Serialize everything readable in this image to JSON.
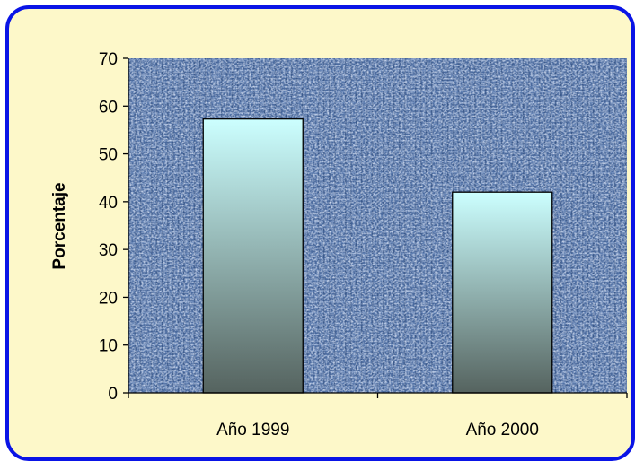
{
  "chart_data": {
    "type": "bar",
    "categories": [
      "Año 1999",
      "Año 2000"
    ],
    "series": [
      {
        "values": [
          57.3,
          42.0
        ]
      }
    ],
    "title": "",
    "xlabel": "",
    "ylabel": "Porcentaje",
    "ylim": [
      0,
      70
    ],
    "yticks": [
      0,
      10,
      20,
      30,
      40,
      50,
      60,
      70
    ],
    "ytick_labels": [
      "0",
      "10",
      "20",
      "30",
      "40",
      "50",
      "60",
      "70"
    ],
    "grid": false,
    "legend": "none",
    "colors": {
      "frame_border": "#0a14e6",
      "frame_fill": "#fdf8c9",
      "plot_background": "#4a6a9e",
      "bar_top": "#ccffff",
      "bar_bottom": "#55635f"
    }
  }
}
